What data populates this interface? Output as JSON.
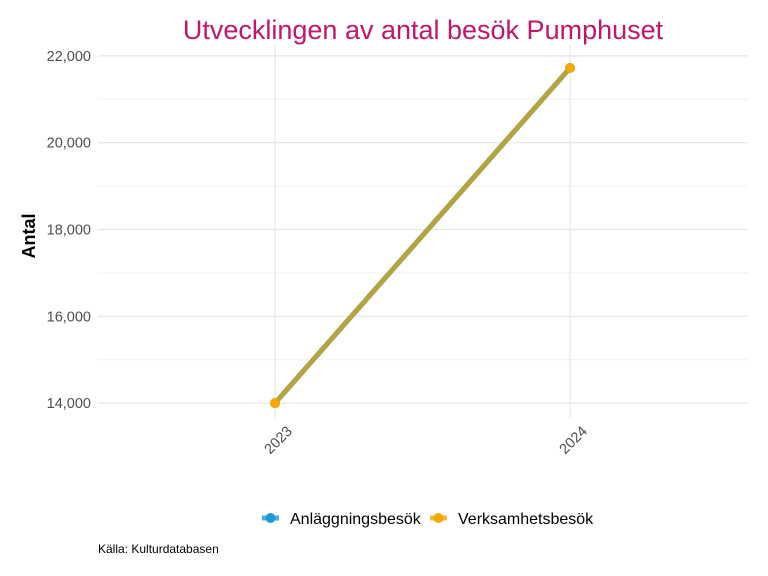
{
  "chart_data": {
    "type": "line",
    "title": "Utvecklingen av antal besök Pumphuset",
    "ylabel": "Antal",
    "xlabel": "",
    "categories": [
      "2023",
      "2024"
    ],
    "series": [
      {
        "name": "Anläggningsbesök",
        "values": [
          14000,
          21720
        ],
        "color": "#1a9bd7"
      },
      {
        "name": "Verksamhetsbesök",
        "values": [
          14000,
          21720
        ],
        "color": "#f5a800"
      }
    ],
    "ylim": [
      13750,
      22250
    ],
    "yticks": [
      14000,
      16000,
      18000,
      20000,
      22000
    ],
    "ytick_labels": [
      "14,000",
      "16,000",
      "18,000",
      "20,000",
      "22,000"
    ],
    "grid": true,
    "legend": "bottom",
    "title_color": "#c0166b",
    "caption": "Källa: Kulturdatabasen"
  }
}
